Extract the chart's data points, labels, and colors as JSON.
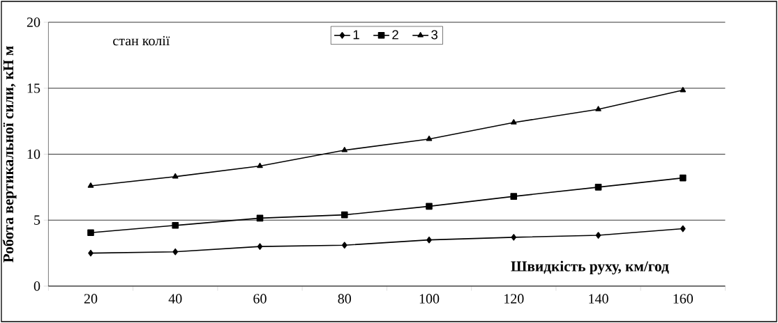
{
  "chart_data": {
    "type": "line",
    "xlabel": "Швидкість руху, км/год",
    "ylabel": "Робота вертикальної сили, кН м",
    "annotations": [
      "стан колії"
    ],
    "categories": [
      "20",
      "40",
      "60",
      "80",
      "100",
      "120",
      "140",
      "160"
    ],
    "series": [
      {
        "name": "1",
        "color": "#000000",
        "marker": "diamond",
        "values": [
          2.5,
          2.6,
          3.0,
          3.1,
          3.5,
          3.7,
          3.85,
          4.35
        ]
      },
      {
        "name": "2",
        "color": "#000000",
        "marker": "square",
        "values": [
          4.05,
          4.6,
          5.15,
          5.4,
          6.05,
          6.8,
          7.5,
          8.2
        ]
      },
      {
        "name": "3",
        "color": "#000000",
        "marker": "triangle",
        "values": [
          7.6,
          8.3,
          9.1,
          10.3,
          11.15,
          12.4,
          13.4,
          14.85
        ]
      }
    ],
    "ylim": [
      0,
      20
    ],
    "yticks": [
      0,
      5,
      10,
      15,
      20
    ],
    "grid": "y",
    "legend": "top",
    "line_style": "solid"
  }
}
